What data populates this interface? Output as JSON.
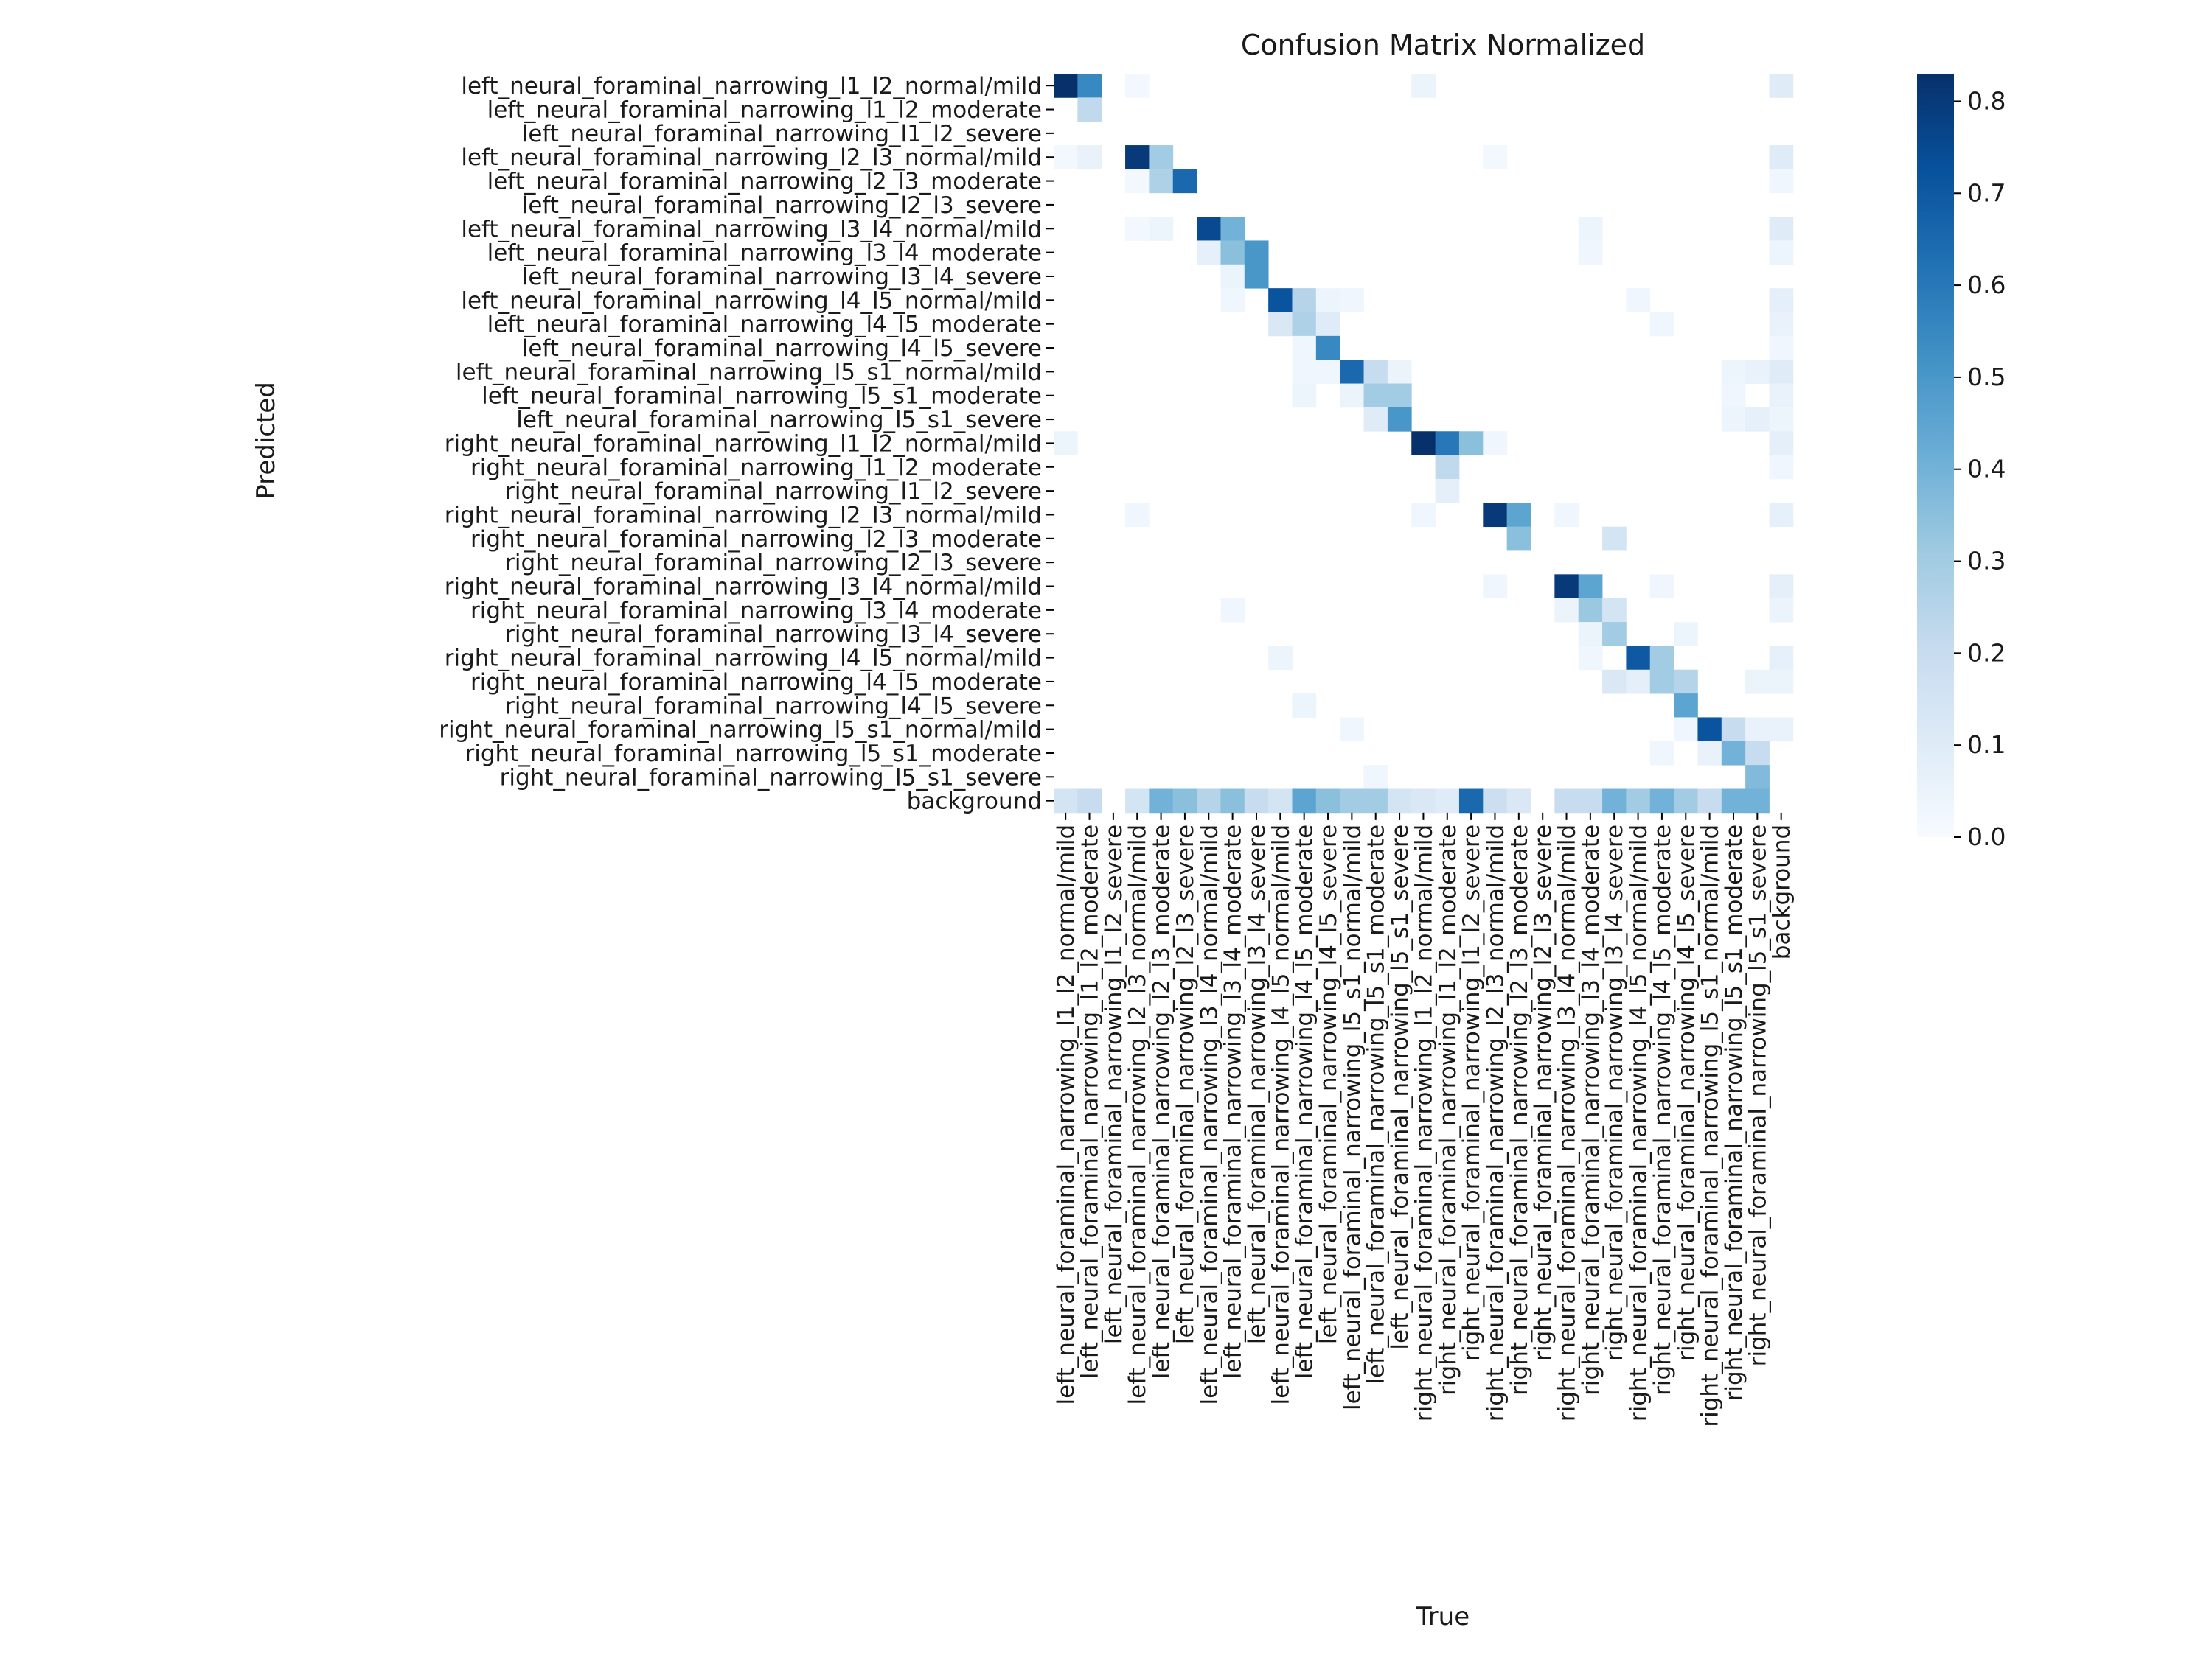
{
  "chart_data": {
    "type": "heatmap",
    "title": "Confusion Matrix Normalized",
    "xlabel": "True",
    "ylabel": "Predicted",
    "labels": [
      "left_neural_foraminal_narrowing_l1_l2_normal/mild",
      "left_neural_foraminal_narrowing_l1_l2_moderate",
      "left_neural_foraminal_narrowing_l1_l2_severe",
      "left_neural_foraminal_narrowing_l2_l3_normal/mild",
      "left_neural_foraminal_narrowing_l2_l3_moderate",
      "left_neural_foraminal_narrowing_l2_l3_severe",
      "left_neural_foraminal_narrowing_l3_l4_normal/mild",
      "left_neural_foraminal_narrowing_l3_l4_moderate",
      "left_neural_foraminal_narrowing_l3_l4_severe",
      "left_neural_foraminal_narrowing_l4_l5_normal/mild",
      "left_neural_foraminal_narrowing_l4_l5_moderate",
      "left_neural_foraminal_narrowing_l4_l5_severe",
      "left_neural_foraminal_narrowing_l5_s1_normal/mild",
      "left_neural_foraminal_narrowing_l5_s1_moderate",
      "left_neural_foraminal_narrowing_l5_s1_severe",
      "right_neural_foraminal_narrowing_l1_l2_normal/mild",
      "right_neural_foraminal_narrowing_l1_l2_moderate",
      "right_neural_foraminal_narrowing_l1_l2_severe",
      "right_neural_foraminal_narrowing_l2_l3_normal/mild",
      "right_neural_foraminal_narrowing_l2_l3_moderate",
      "right_neural_foraminal_narrowing_l2_l3_severe",
      "right_neural_foraminal_narrowing_l3_l4_normal/mild",
      "right_neural_foraminal_narrowing_l3_l4_moderate",
      "right_neural_foraminal_narrowing_l3_l4_severe",
      "right_neural_foraminal_narrowing_l4_l5_normal/mild",
      "right_neural_foraminal_narrowing_l4_l5_moderate",
      "right_neural_foraminal_narrowing_l4_l5_severe",
      "right_neural_foraminal_narrowing_l5_s1_normal/mild",
      "right_neural_foraminal_narrowing_l5_s1_moderate",
      "right_neural_foraminal_narrowing_l5_s1_severe",
      "background"
    ],
    "colorbar": {
      "min": 0.0,
      "max": 0.83,
      "ticks": [
        0.0,
        0.1,
        0.2,
        0.3,
        0.4,
        0.5,
        0.6,
        0.7,
        0.8
      ],
      "tick_labels": [
        "0.0",
        "0.1",
        "0.2",
        "0.3",
        "0.4",
        "0.5",
        "0.6",
        "0.7",
        "0.8"
      ],
      "colormap": "Blues",
      "colors": [
        "#f7fbff",
        "#deebf7",
        "#c6dbef",
        "#9ecae1",
        "#6baed6",
        "#4292c6",
        "#2171b5",
        "#08519c",
        "#08306b"
      ]
    },
    "cells": [
      [
        0,
        0,
        0.83
      ],
      [
        0,
        1,
        0.55
      ],
      [
        0,
        3,
        0.02
      ],
      [
        0,
        15,
        0.05
      ],
      [
        0,
        30,
        0.1
      ],
      [
        1,
        1,
        0.22
      ],
      [
        3,
        0,
        0.02
      ],
      [
        3,
        1,
        0.06
      ],
      [
        3,
        3,
        0.8
      ],
      [
        3,
        4,
        0.3
      ],
      [
        3,
        18,
        0.02
      ],
      [
        3,
        30,
        0.1
      ],
      [
        4,
        3,
        0.02
      ],
      [
        4,
        4,
        0.27
      ],
      [
        4,
        5,
        0.65
      ],
      [
        4,
        30,
        0.03
      ],
      [
        6,
        3,
        0.02
      ],
      [
        6,
        4,
        0.04
      ],
      [
        6,
        6,
        0.75
      ],
      [
        6,
        7,
        0.4
      ],
      [
        6,
        22,
        0.04
      ],
      [
        6,
        30,
        0.1
      ],
      [
        7,
        6,
        0.07
      ],
      [
        7,
        7,
        0.35
      ],
      [
        7,
        8,
        0.5
      ],
      [
        7,
        22,
        0.03
      ],
      [
        7,
        30,
        0.04
      ],
      [
        8,
        7,
        0.05
      ],
      [
        8,
        8,
        0.5
      ],
      [
        9,
        7,
        0.03
      ],
      [
        9,
        9,
        0.72
      ],
      [
        9,
        10,
        0.25
      ],
      [
        9,
        11,
        0.04
      ],
      [
        9,
        12,
        0.03
      ],
      [
        9,
        24,
        0.03
      ],
      [
        9,
        30,
        0.08
      ],
      [
        10,
        9,
        0.12
      ],
      [
        10,
        10,
        0.27
      ],
      [
        10,
        11,
        0.1
      ],
      [
        10,
        25,
        0.03
      ],
      [
        10,
        30,
        0.06
      ],
      [
        11,
        10,
        0.03
      ],
      [
        11,
        11,
        0.55
      ],
      [
        11,
        30,
        0.03
      ],
      [
        12,
        10,
        0.03
      ],
      [
        12,
        11,
        0.03
      ],
      [
        12,
        12,
        0.65
      ],
      [
        12,
        13,
        0.2
      ],
      [
        12,
        14,
        0.05
      ],
      [
        12,
        28,
        0.04
      ],
      [
        12,
        29,
        0.06
      ],
      [
        12,
        30,
        0.1
      ],
      [
        13,
        10,
        0.04
      ],
      [
        13,
        12,
        0.05
      ],
      [
        13,
        13,
        0.3
      ],
      [
        13,
        14,
        0.3
      ],
      [
        13,
        28,
        0.03
      ],
      [
        13,
        30,
        0.06
      ],
      [
        14,
        13,
        0.1
      ],
      [
        14,
        14,
        0.5
      ],
      [
        14,
        28,
        0.04
      ],
      [
        14,
        29,
        0.07
      ],
      [
        14,
        30,
        0.04
      ],
      [
        15,
        0,
        0.04
      ],
      [
        15,
        15,
        0.83
      ],
      [
        15,
        16,
        0.6
      ],
      [
        15,
        17,
        0.35
      ],
      [
        15,
        18,
        0.03
      ],
      [
        15,
        30,
        0.08
      ],
      [
        16,
        16,
        0.22
      ],
      [
        16,
        30,
        0.03
      ],
      [
        17,
        16,
        0.08
      ],
      [
        18,
        3,
        0.03
      ],
      [
        18,
        15,
        0.03
      ],
      [
        18,
        18,
        0.8
      ],
      [
        18,
        19,
        0.45
      ],
      [
        18,
        21,
        0.03
      ],
      [
        18,
        30,
        0.07
      ],
      [
        19,
        19,
        0.35
      ],
      [
        19,
        23,
        0.15
      ],
      [
        21,
        18,
        0.03
      ],
      [
        21,
        21,
        0.8
      ],
      [
        21,
        22,
        0.45
      ],
      [
        21,
        25,
        0.03
      ],
      [
        21,
        30,
        0.08
      ],
      [
        22,
        7,
        0.03
      ],
      [
        22,
        21,
        0.05
      ],
      [
        22,
        22,
        0.32
      ],
      [
        22,
        23,
        0.15
      ],
      [
        22,
        30,
        0.05
      ],
      [
        23,
        22,
        0.05
      ],
      [
        23,
        23,
        0.3
      ],
      [
        23,
        26,
        0.04
      ],
      [
        24,
        9,
        0.04
      ],
      [
        24,
        22,
        0.03
      ],
      [
        24,
        24,
        0.7
      ],
      [
        24,
        25,
        0.3
      ],
      [
        24,
        30,
        0.07
      ],
      [
        25,
        23,
        0.12
      ],
      [
        25,
        24,
        0.08
      ],
      [
        25,
        25,
        0.3
      ],
      [
        25,
        26,
        0.25
      ],
      [
        25,
        29,
        0.05
      ],
      [
        25,
        30,
        0.05
      ],
      [
        26,
        10,
        0.04
      ],
      [
        26,
        26,
        0.45
      ],
      [
        27,
        12,
        0.03
      ],
      [
        27,
        26,
        0.03
      ],
      [
        27,
        27,
        0.72
      ],
      [
        27,
        28,
        0.2
      ],
      [
        27,
        29,
        0.06
      ],
      [
        27,
        30,
        0.06
      ],
      [
        28,
        25,
        0.03
      ],
      [
        28,
        27,
        0.06
      ],
      [
        28,
        28,
        0.4
      ],
      [
        28,
        29,
        0.2
      ],
      [
        29,
        13,
        0.03
      ],
      [
        29,
        29,
        0.37
      ],
      [
        30,
        0,
        0.15
      ],
      [
        30,
        1,
        0.2
      ],
      [
        30,
        3,
        0.15
      ],
      [
        30,
        4,
        0.4
      ],
      [
        30,
        5,
        0.35
      ],
      [
        30,
        6,
        0.25
      ],
      [
        30,
        7,
        0.35
      ],
      [
        30,
        8,
        0.2
      ],
      [
        30,
        9,
        0.15
      ],
      [
        30,
        10,
        0.45
      ],
      [
        30,
        11,
        0.35
      ],
      [
        30,
        12,
        0.3
      ],
      [
        30,
        13,
        0.3
      ],
      [
        30,
        14,
        0.15
      ],
      [
        30,
        15,
        0.12
      ],
      [
        30,
        16,
        0.1
      ],
      [
        30,
        17,
        0.65
      ],
      [
        30,
        18,
        0.18
      ],
      [
        30,
        19,
        0.12
      ],
      [
        30,
        21,
        0.2
      ],
      [
        30,
        22,
        0.2
      ],
      [
        30,
        23,
        0.4
      ],
      [
        30,
        24,
        0.3
      ],
      [
        30,
        25,
        0.4
      ],
      [
        30,
        26,
        0.3
      ],
      [
        30,
        27,
        0.2
      ],
      [
        30,
        28,
        0.4
      ],
      [
        30,
        29,
        0.4
      ]
    ]
  }
}
